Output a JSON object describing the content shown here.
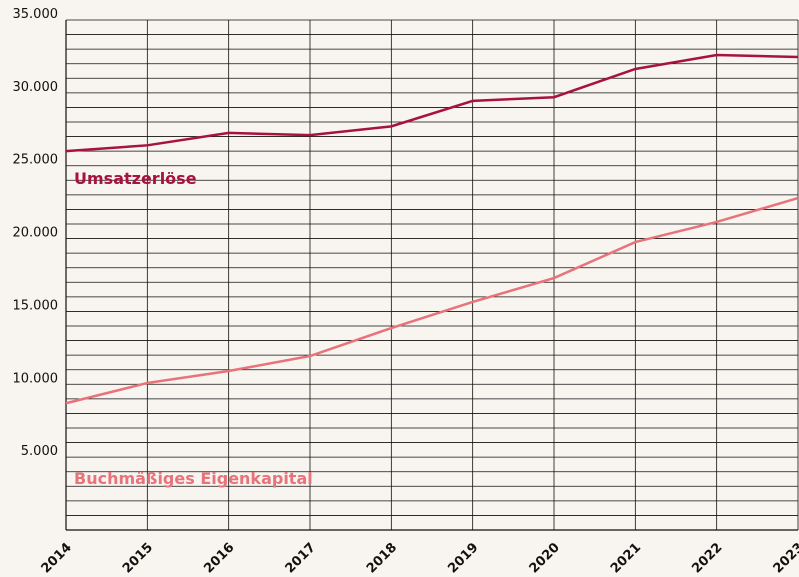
{
  "chart_data": {
    "type": "line",
    "x": [
      2014,
      2015,
      2016,
      2017,
      2018,
      2019,
      2020,
      2021,
      2022,
      2023
    ],
    "series": [
      {
        "name": "Umsatzerlöse",
        "color": "#a8123e",
        "values": [
          26000,
          26400,
          27250,
          27100,
          27700,
          29450,
          29700,
          31640,
          32600,
          32460
        ]
      },
      {
        "name": "Buchmäßiges Eigenkapital",
        "color": "#e8737a",
        "values": [
          8700,
          10090,
          10910,
          11940,
          13860,
          15650,
          17290,
          19760,
          21140,
          22780
        ]
      }
    ],
    "xlim": [
      2014,
      2023
    ],
    "ylim": [
      0,
      35000
    ],
    "yticks": [
      {
        "value": 5000,
        "label": "5.000"
      },
      {
        "value": 10000,
        "label": "10.000"
      },
      {
        "value": 15000,
        "label": "15.000"
      },
      {
        "value": 20000,
        "label": "20.000"
      },
      {
        "value": 25000,
        "label": "25.000"
      },
      {
        "value": 30000,
        "label": "30.000"
      },
      {
        "value": 35000,
        "label": "35.000"
      }
    ],
    "y_minor_ticks": [
      1000,
      2000,
      3000,
      4000,
      6000,
      7000,
      8000,
      9000,
      11000,
      12000,
      13000,
      14000,
      16000,
      17000,
      18000,
      19000,
      21000,
      22000,
      23000,
      24000,
      26000,
      27000,
      28000,
      29000,
      31000,
      32000,
      33000,
      34000
    ],
    "grid": true
  }
}
